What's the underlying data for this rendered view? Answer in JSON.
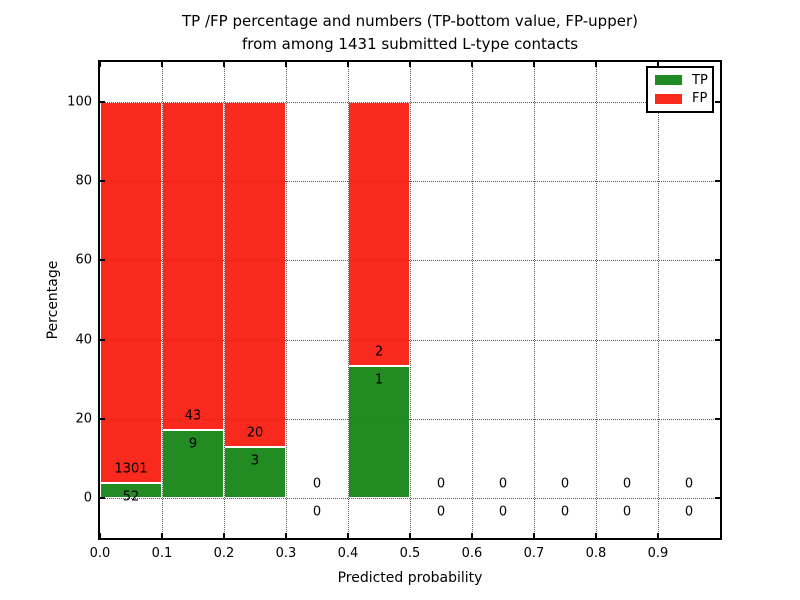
{
  "title": {
    "line1": "TP /FP percentage and numbers (TP-bottom value, FP-upper)",
    "line2": "from among 1431 submitted L-type contacts"
  },
  "colors": {
    "tp": "#228b22",
    "fp": "#f8291d",
    "grid": "#5a5a5a",
    "axis": "#000000",
    "background": "#ffffff"
  },
  "chart_data": {
    "type": "bar",
    "stacked": true,
    "title": "TP /FP percentage and numbers (TP-bottom value, FP-upper) from among 1431 submitted L-type contacts",
    "xlabel": "Predicted probability",
    "ylabel": "Percentage",
    "xlim": [
      0.0,
      1.0
    ],
    "ylim": [
      -10,
      110
    ],
    "grid": "dotted",
    "legend": {
      "position": "upper right",
      "entries": [
        {
          "label": "TP",
          "color_key": "tp"
        },
        {
          "label": "FP",
          "color_key": "fp"
        }
      ]
    },
    "xticks": {
      "values": [
        0.0,
        0.1,
        0.2,
        0.3,
        0.4,
        0.5,
        0.6,
        0.7,
        0.8,
        0.9
      ],
      "labels": [
        "0.0",
        "0.1",
        "0.2",
        "0.3",
        "0.4",
        "0.5",
        "0.6",
        "0.7",
        "0.8",
        "0.9"
      ]
    },
    "yticks": {
      "values": [
        0,
        20,
        40,
        60,
        80,
        100
      ],
      "labels": [
        "0",
        "20",
        "40",
        "60",
        "80",
        "100"
      ]
    },
    "bins": [
      {
        "range": [
          0.0,
          0.1
        ],
        "tp": 52,
        "fp": 1301,
        "tp_pct": 3.84,
        "fp_pct": 96.16
      },
      {
        "range": [
          0.1,
          0.2
        ],
        "tp": 9,
        "fp": 43,
        "tp_pct": 17.31,
        "fp_pct": 82.69
      },
      {
        "range": [
          0.2,
          0.3
        ],
        "tp": 3,
        "fp": 20,
        "tp_pct": 13.04,
        "fp_pct": 86.96
      },
      {
        "range": [
          0.3,
          0.4
        ],
        "tp": 0,
        "fp": 0,
        "tp_pct": 0,
        "fp_pct": 0
      },
      {
        "range": [
          0.4,
          0.5
        ],
        "tp": 1,
        "fp": 2,
        "tp_pct": 33.33,
        "fp_pct": 66.67
      },
      {
        "range": [
          0.5,
          0.6
        ],
        "tp": 0,
        "fp": 0,
        "tp_pct": 0,
        "fp_pct": 0
      },
      {
        "range": [
          0.6,
          0.7
        ],
        "tp": 0,
        "fp": 0,
        "tp_pct": 0,
        "fp_pct": 0
      },
      {
        "range": [
          0.7,
          0.8
        ],
        "tp": 0,
        "fp": 0,
        "tp_pct": 0,
        "fp_pct": 0
      },
      {
        "range": [
          0.8,
          0.9
        ],
        "tp": 0,
        "fp": 0,
        "tp_pct": 0,
        "fp_pct": 0
      },
      {
        "range": [
          0.9,
          1.0
        ],
        "tp": 0,
        "fp": 0,
        "tp_pct": 0,
        "fp_pct": 0
      }
    ]
  }
}
